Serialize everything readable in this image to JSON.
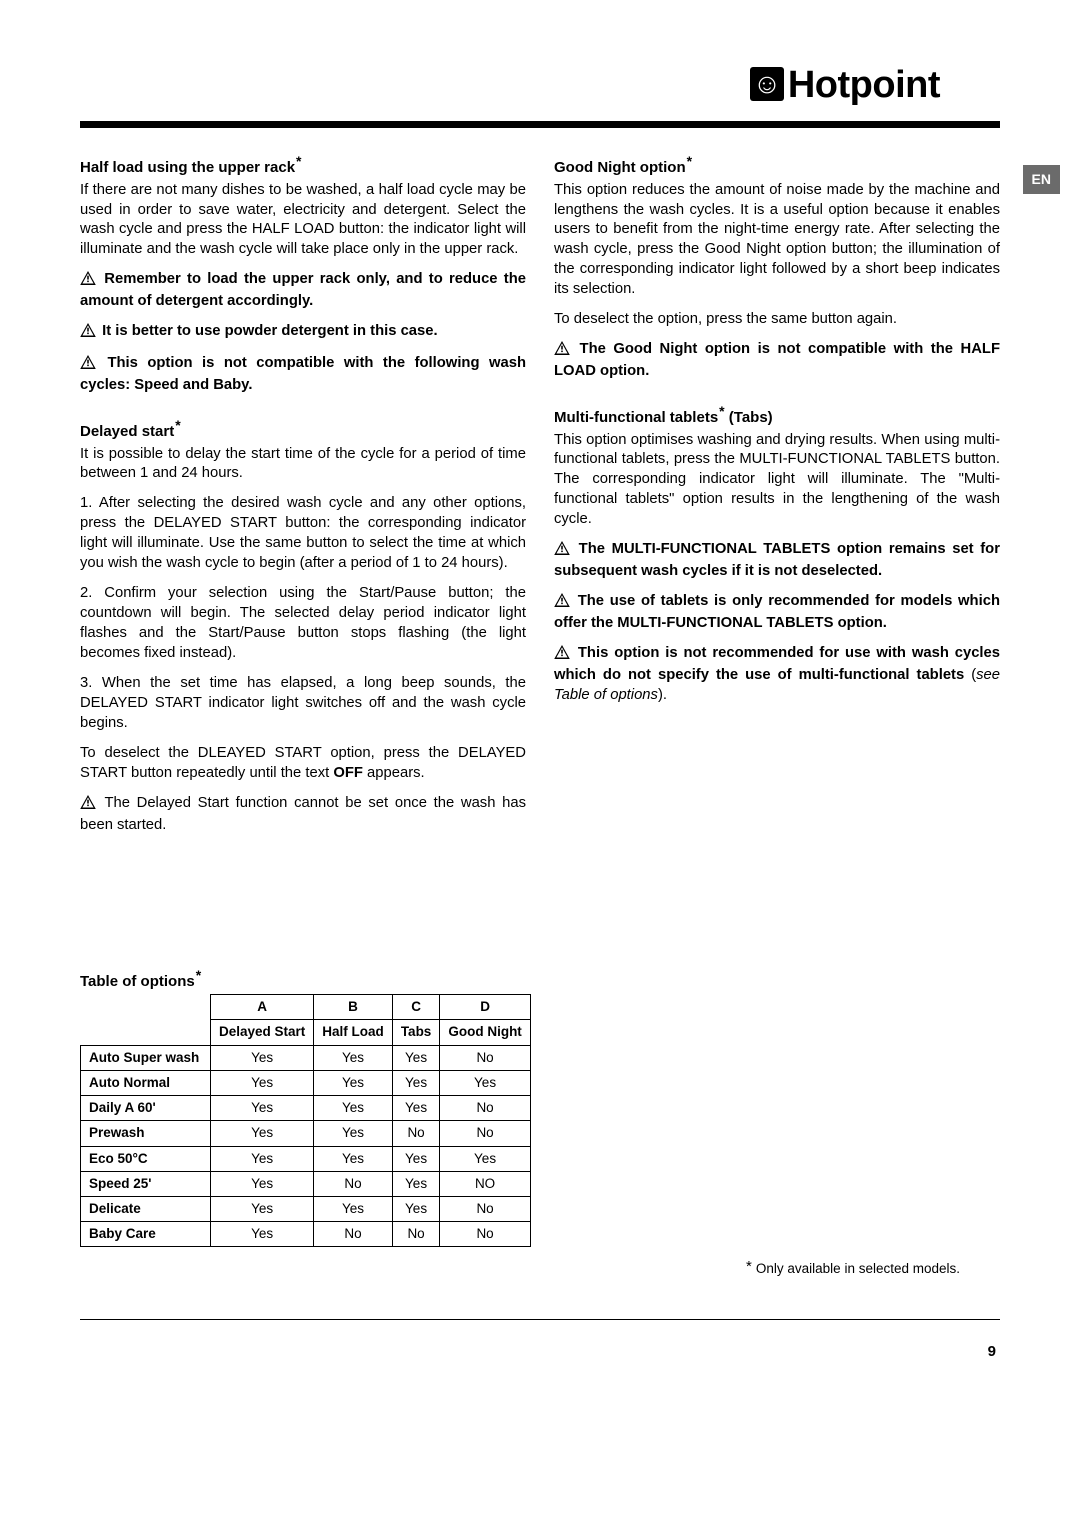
{
  "brand": {
    "name": "Hotpoint",
    "icon_glyph": "☺"
  },
  "lang_tag": "EN",
  "warn_icon_bg": "#000000",
  "warn_icon_fg": "#ffffff",
  "left": {
    "half_load": {
      "title": "Half load using the upper rack",
      "body": "If there are not many dishes to be washed, a half load cycle may be used in order to save water, electricity and detergent. Select the wash cycle and press the HALF LOAD button: the indicator light will illuminate and the wash cycle will take place only in the upper rack.",
      "warn1": "Remember to load the upper rack only, and to reduce the amount of detergent accordingly.",
      "warn2": "It is better to use powder detergent in this case.",
      "warn3": "This option is not compatible with the following wash cycles: Speed and Baby."
    },
    "delayed": {
      "title": "Delayed start",
      "intro": "It is possible to delay the start time of the cycle for a period of time between 1 and 24 hours.",
      "step1": "1. After selecting the desired wash cycle and any other options, press the DELAYED START button: the corresponding indicator light will illuminate. Use the same button to select the time at which you wish the wash cycle to begin (after a period of 1 to 24 hours).",
      "step2": "2. Confirm your selection using the Start/Pause button; the countdown will begin. The selected delay period indicator light flashes and the Start/Pause button stops flashing (the light becomes fixed instead).",
      "step3": "3. When the set time has elapsed, a long beep sounds, the DELAYED START indicator light switches off and the wash cycle begins.",
      "deselect_a": "To deselect the DLEAYED START option, press the DELAYED START button repeatedly until the text ",
      "deselect_b": "OFF",
      "deselect_c": " appears.",
      "warn": "The Delayed Start function cannot be set once the wash has been started."
    }
  },
  "right": {
    "good_night": {
      "title": "Good Night option",
      "body": "This option reduces the amount of noise made by the machine and lengthens the wash cycles. It is a useful option because it enables users to benefit from the night-time energy rate. After selecting the wash cycle, press the Good Night option button; the illumination of the corresponding indicator light followed by a short beep indicates its selection.",
      "deselect": "To deselect the option, press the same button again.",
      "warn": "The Good Night option is not compatible with the HALF LOAD option."
    },
    "tablets": {
      "title_a": "Multi-functional tablets",
      "title_b": "  (Tabs)",
      "body": "This option optimises washing and drying results. When using multi-functional tablets, press the MULTI-FUNCTIONAL TABLETS button. The corresponding indicator light will illuminate.  The \"Multi-functional tablets\" option results in the lengthening of the wash cycle.",
      "warn1": "The MULTI-FUNCTIONAL TABLETS option remains set for subsequent wash cycles if it is not deselected.",
      "warn2": "The use of tablets is only recommended for models which offer the MULTI-FUNCTIONAL TABLETS option.",
      "warn3_a": "This option is not recommended for use with wash cycles which do not specify the use of multi-functional tablets",
      "warn3_b": " (",
      "warn3_c": "see Table of options",
      "warn3_d": ")."
    }
  },
  "table": {
    "title": "Table of options",
    "cols_top": [
      "A",
      "B",
      "C",
      "D"
    ],
    "cols_sub": [
      "Delayed Start",
      "Half Load",
      "Tabs",
      "Good Night"
    ],
    "rows": [
      {
        "label": "Auto Super wash",
        "cells": [
          "Yes",
          "Yes",
          "Yes",
          "No"
        ]
      },
      {
        "label": "Auto Normal",
        "cells": [
          "Yes",
          "Yes",
          "Yes",
          "Yes"
        ]
      },
      {
        "label": "Daily A 60'",
        "cells": [
          "Yes",
          "Yes",
          "Yes",
          "No"
        ]
      },
      {
        "label": "Prewash",
        "cells": [
          "Yes",
          "Yes",
          "No",
          "No"
        ]
      },
      {
        "label": "Eco 50°C",
        "cells": [
          "Yes",
          "Yes",
          "Yes",
          "Yes"
        ]
      },
      {
        "label": "Speed 25'",
        "cells": [
          "Yes",
          "No",
          "Yes",
          "NO"
        ]
      },
      {
        "label": "Delicate",
        "cells": [
          "Yes",
          "Yes",
          "Yes",
          "No"
        ]
      },
      {
        "label": "Baby Care",
        "cells": [
          "Yes",
          "No",
          "No",
          "No"
        ]
      }
    ]
  },
  "footnote": "Only available in selected models.",
  "page_number": "9"
}
